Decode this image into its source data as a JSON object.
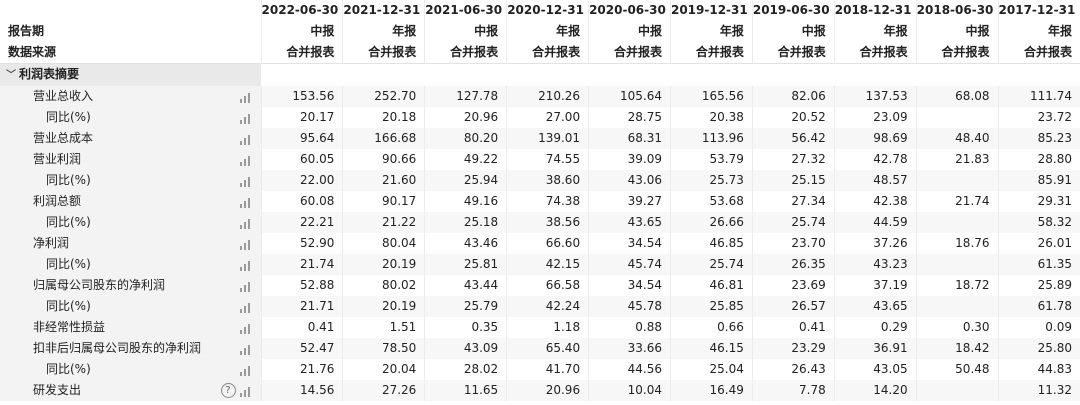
{
  "header": {
    "periods": [
      "2022-06-30",
      "2021-12-31",
      "2021-06-30",
      "2020-12-31",
      "2020-06-30",
      "2019-12-31",
      "2019-06-30",
      "2018-12-31",
      "2018-06-30",
      "2017-12-31"
    ],
    "report_period_label": "报告期",
    "report_types": [
      "中报",
      "年报",
      "中报",
      "年报",
      "中报",
      "年报",
      "中报",
      "年报",
      "中报",
      "年报"
    ],
    "data_source_label": "数据来源",
    "data_sources": [
      "合并报表",
      "合并报表",
      "合并报表",
      "合并报表",
      "合并报表",
      "合并报表",
      "合并报表",
      "合并报表",
      "合并报表",
      "合并报表"
    ]
  },
  "section": {
    "title": "利润表摘要",
    "collapse_icon": "chevron-down-icon"
  },
  "rows": [
    {
      "label": "营业总收入",
      "values": [
        "153.56",
        "252.70",
        "127.78",
        "210.26",
        "105.64",
        "165.56",
        "82.06",
        "137.53",
        "68.08",
        "111.74"
      ]
    },
    {
      "label": "同比(%)",
      "values": [
        "20.17",
        "20.18",
        "20.96",
        "27.00",
        "28.75",
        "20.38",
        "20.52",
        "23.09",
        "",
        "23.72"
      ]
    },
    {
      "label": "营业总成本",
      "values": [
        "95.64",
        "166.68",
        "80.20",
        "139.01",
        "68.31",
        "113.96",
        "56.42",
        "98.69",
        "48.40",
        "85.23"
      ]
    },
    {
      "label": "营业利润",
      "values": [
        "60.05",
        "90.66",
        "49.22",
        "74.55",
        "39.09",
        "53.79",
        "27.32",
        "42.78",
        "21.83",
        "28.80"
      ]
    },
    {
      "label": "同比(%)",
      "values": [
        "22.00",
        "21.60",
        "25.94",
        "38.60",
        "43.06",
        "25.73",
        "25.15",
        "48.57",
        "",
        "85.91"
      ]
    },
    {
      "label": "利润总额",
      "values": [
        "60.08",
        "90.17",
        "49.16",
        "74.38",
        "39.27",
        "53.68",
        "27.34",
        "42.38",
        "21.74",
        "29.31"
      ]
    },
    {
      "label": "同比(%)",
      "values": [
        "22.21",
        "21.22",
        "25.18",
        "38.56",
        "43.65",
        "26.66",
        "25.74",
        "44.59",
        "",
        "58.32"
      ]
    },
    {
      "label": "净利润",
      "values": [
        "52.90",
        "80.04",
        "43.46",
        "66.60",
        "34.54",
        "46.85",
        "23.70",
        "37.26",
        "18.76",
        "26.01"
      ]
    },
    {
      "label": "同比(%)",
      "values": [
        "21.74",
        "20.19",
        "25.81",
        "42.15",
        "45.74",
        "25.74",
        "26.35",
        "43.23",
        "",
        "61.35"
      ]
    },
    {
      "label": "归属母公司股东的净利润",
      "values": [
        "52.88",
        "80.02",
        "43.44",
        "66.58",
        "34.54",
        "46.81",
        "23.69",
        "37.19",
        "18.72",
        "25.89"
      ]
    },
    {
      "label": "同比(%)",
      "values": [
        "21.71",
        "20.19",
        "25.79",
        "42.24",
        "45.78",
        "25.85",
        "26.57",
        "43.65",
        "",
        "61.78"
      ]
    },
    {
      "label": "非经常性损益",
      "values": [
        "0.41",
        "1.51",
        "0.35",
        "1.18",
        "0.88",
        "0.66",
        "0.41",
        "0.29",
        "0.30",
        "0.09"
      ]
    },
    {
      "label": "扣非后归属母公司股东的净利润",
      "values": [
        "52.47",
        "78.50",
        "43.09",
        "65.40",
        "33.66",
        "46.15",
        "23.29",
        "36.91",
        "18.42",
        "25.80"
      ]
    },
    {
      "label": "同比(%)",
      "values": [
        "21.76",
        "20.04",
        "28.02",
        "41.70",
        "44.56",
        "25.04",
        "26.43",
        "43.05",
        "50.48",
        "44.83"
      ]
    },
    {
      "label": "研发支出",
      "help_icon": "?",
      "values": [
        "14.56",
        "27.26",
        "11.65",
        "20.96",
        "10.04",
        "16.49",
        "7.78",
        "14.20",
        "",
        "11.32"
      ]
    }
  ]
}
